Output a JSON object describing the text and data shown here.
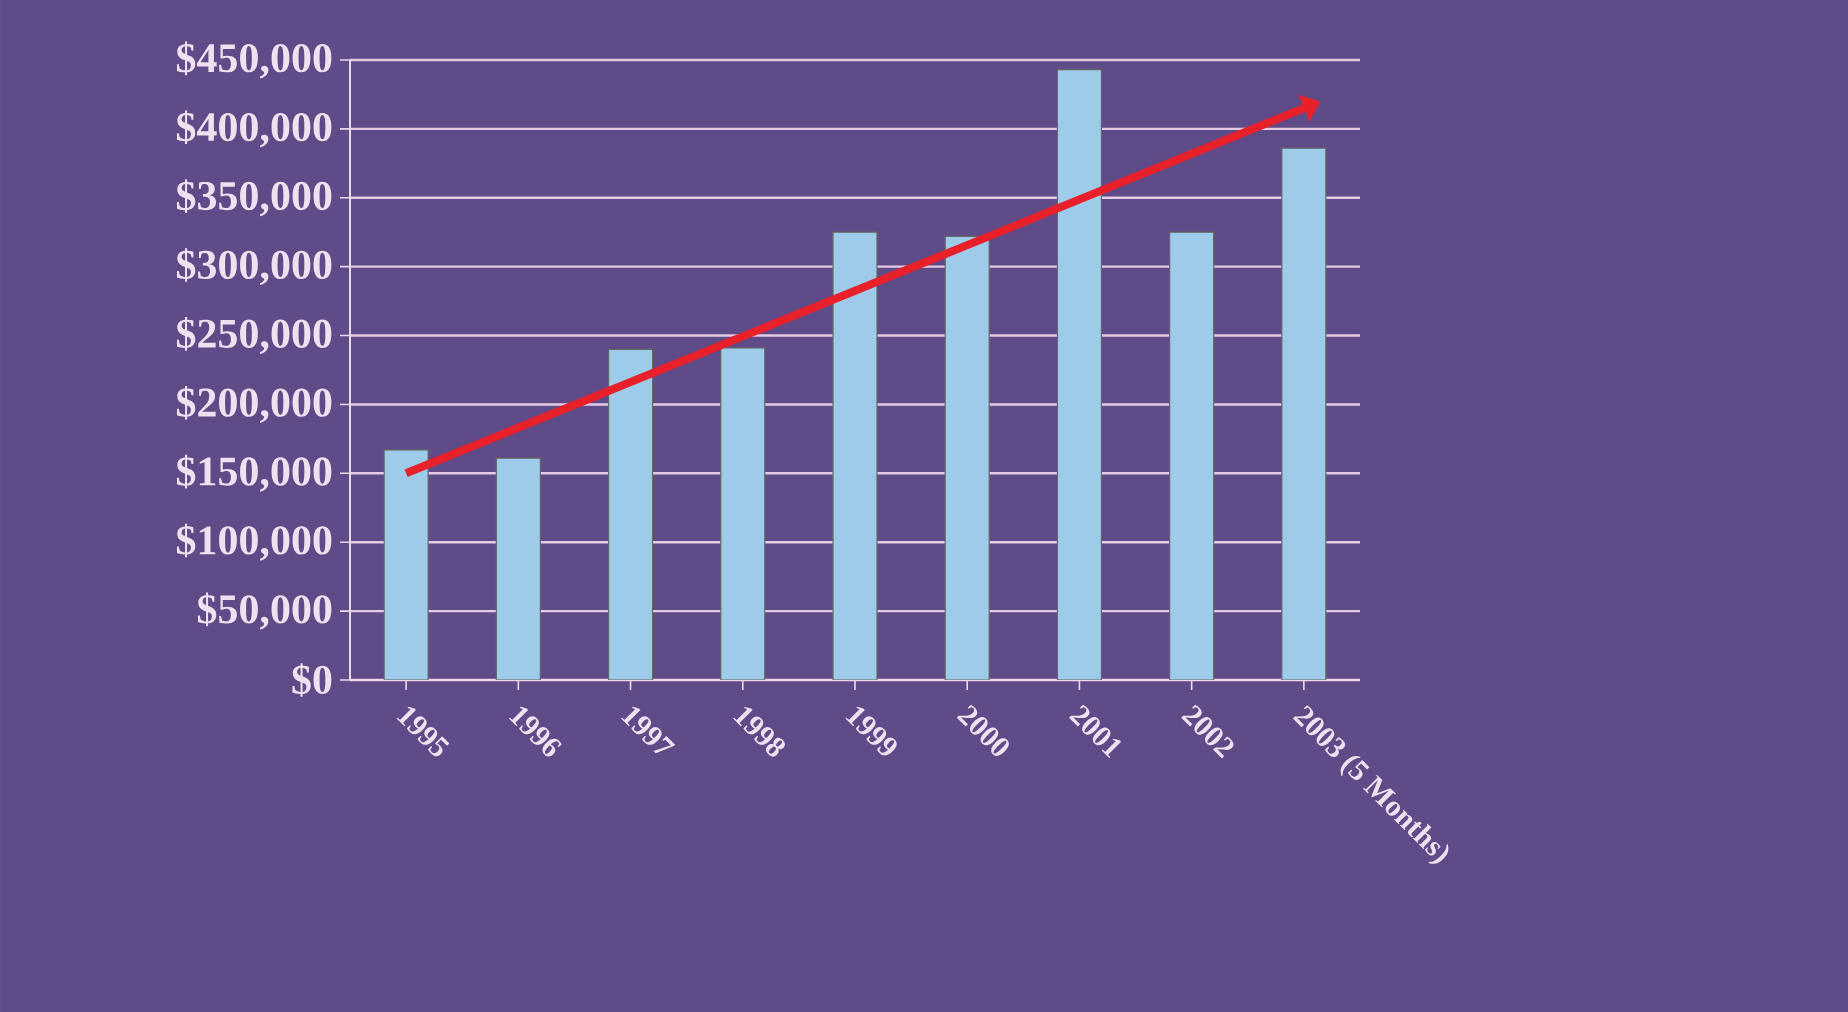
{
  "chart_data": {
    "type": "bar",
    "categories": [
      "1995",
      "1996",
      "1997",
      "1998",
      "1999",
      "2000",
      "2001",
      "2002",
      "2003 (5 Months)"
    ],
    "series": [
      {
        "color": "#9fcbea",
        "values": [
          167000,
          161000,
          240000,
          241000,
          325000,
          322000,
          443000,
          325000,
          386000
        ]
      },
      {
        "type": "line",
        "color": "#e8202a",
        "values": [
          150000,
          null,
          null,
          null,
          null,
          null,
          null,
          null,
          415000
        ]
      }
    ],
    "ylim": [
      0,
      450000
    ],
    "yticks": [
      {
        "value": 0,
        "label": "$0"
      },
      {
        "value": 50000,
        "label": "$50,000"
      },
      {
        "value": 100000,
        "label": "$100,000"
      },
      {
        "value": 150000,
        "label": "$150,000"
      },
      {
        "value": 200000,
        "label": "$200,000"
      },
      {
        "value": 250000,
        "label": "$250,000"
      },
      {
        "value": 300000,
        "label": "$300,000"
      },
      {
        "value": 350000,
        "label": "$350,000"
      },
      {
        "value": 400000,
        "label": "$400,000"
      },
      {
        "value": 450000,
        "label": "$450,000"
      }
    ],
    "grid": "y"
  }
}
